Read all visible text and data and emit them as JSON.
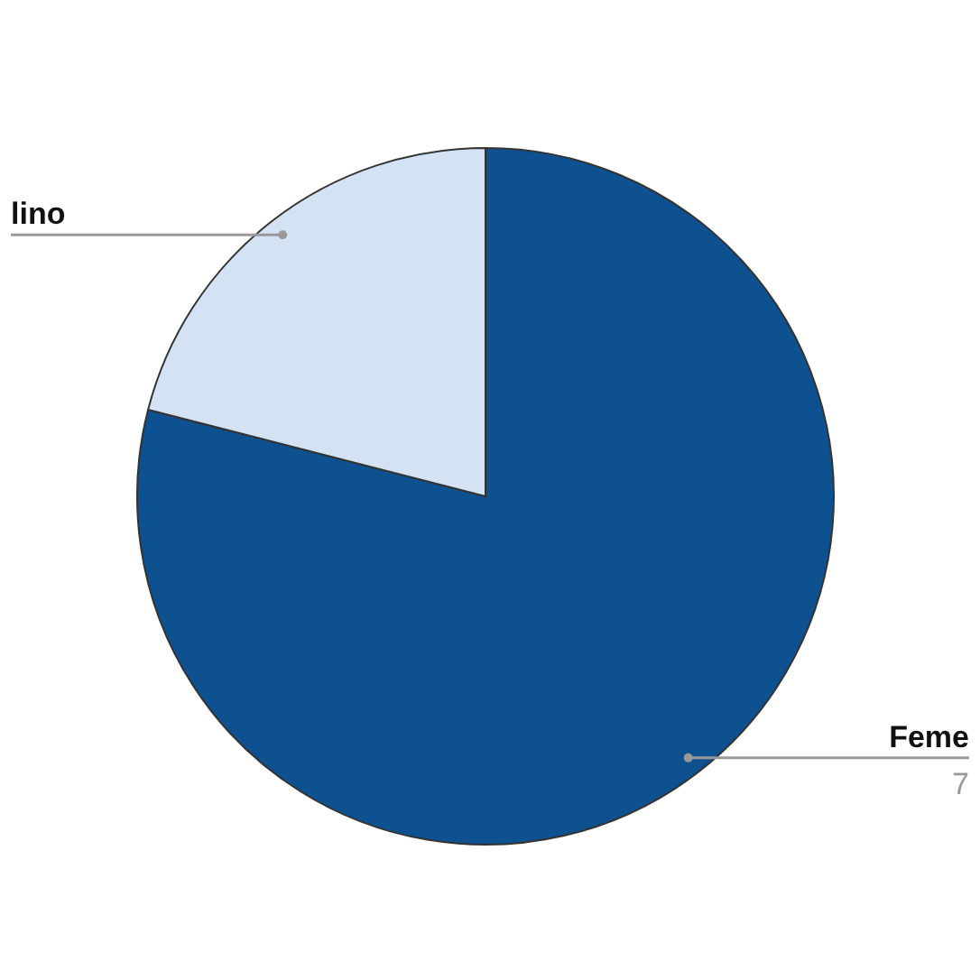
{
  "chart_data": {
    "type": "pie",
    "categories": [
      "Feme",
      "lino"
    ],
    "values": [
      79,
      21
    ],
    "colors": [
      "#0e5191",
      "#d3e3f3"
    ],
    "annotations": [
      "7"
    ]
  }
}
